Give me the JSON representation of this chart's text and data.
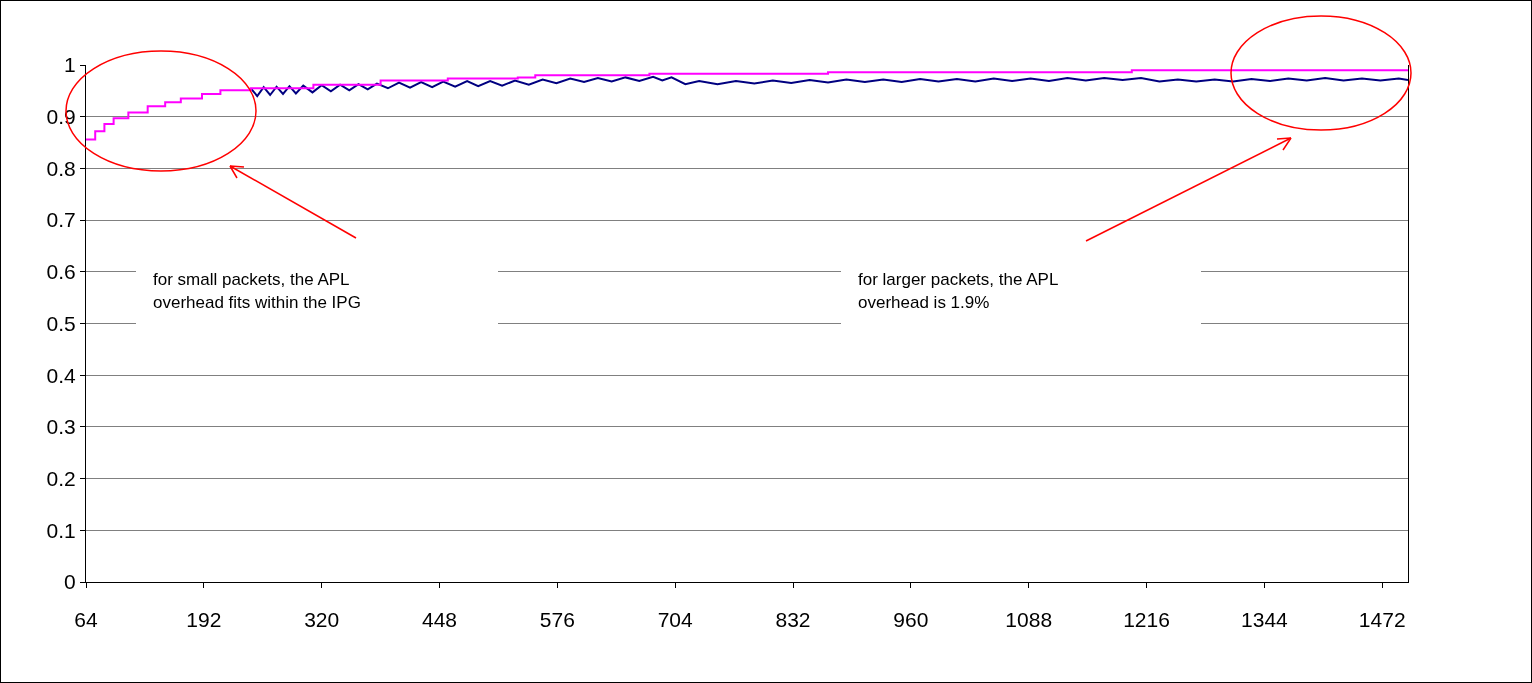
{
  "chart_data": {
    "type": "line",
    "xlim": [
      64,
      1500
    ],
    "xticks": [
      64,
      192,
      320,
      448,
      576,
      704,
      832,
      960,
      1088,
      1216,
      1344,
      1472
    ],
    "ylim": [
      0,
      1
    ],
    "yticks": [
      0,
      0.1,
      0.2,
      0.3,
      0.4,
      0.5,
      0.6,
      0.7,
      0.8,
      0.9,
      1
    ],
    "grid": "y",
    "marker": "none",
    "line_style": "solid",
    "annotations": [
      "for small packets, the APL\noverhead fits within the IPG",
      "for larger packets, the APL\noverhead is 1.9%"
    ],
    "series": [
      {
        "color": "#000080",
        "x": [
          243,
          250,
          257,
          264,
          271,
          278,
          285,
          292,
          300,
          310,
          320,
          330,
          340,
          350,
          360,
          370,
          380,
          392,
          404,
          416,
          428,
          440,
          452,
          465,
          478,
          490,
          503,
          516,
          530,
          545,
          560,
          575,
          590,
          605,
          620,
          635,
          650,
          665,
          680,
          690,
          700,
          715,
          730,
          750,
          770,
          790,
          810,
          830,
          850,
          870,
          890,
          910,
          930,
          950,
          970,
          990,
          1010,
          1030,
          1050,
          1070,
          1090,
          1110,
          1130,
          1150,
          1170,
          1190,
          1210,
          1230,
          1250,
          1270,
          1290,
          1310,
          1330,
          1350,
          1370,
          1390,
          1410,
          1430,
          1450,
          1470,
          1490,
          1500
        ],
        "values": [
          0.955,
          0.94,
          0.957,
          0.942,
          0.958,
          0.944,
          0.959,
          0.945,
          0.96,
          0.947,
          0.961,
          0.949,
          0.962,
          0.951,
          0.963,
          0.953,
          0.964,
          0.955,
          0.966,
          0.956,
          0.967,
          0.957,
          0.968,
          0.958,
          0.969,
          0.959,
          0.969,
          0.96,
          0.97,
          0.962,
          0.972,
          0.965,
          0.974,
          0.967,
          0.975,
          0.968,
          0.976,
          0.969,
          0.977,
          0.97,
          0.976,
          0.963,
          0.969,
          0.963,
          0.969,
          0.964,
          0.97,
          0.965,
          0.971,
          0.966,
          0.972,
          0.967,
          0.972,
          0.967,
          0.973,
          0.968,
          0.973,
          0.968,
          0.974,
          0.969,
          0.974,
          0.969,
          0.975,
          0.97,
          0.975,
          0.971,
          0.975,
          0.968,
          0.972,
          0.968,
          0.972,
          0.968,
          0.973,
          0.969,
          0.974,
          0.97,
          0.975,
          0.97,
          0.974,
          0.97,
          0.974,
          0.971
        ]
      },
      {
        "type": "step",
        "color": "#ff00ff",
        "x": [
          64,
          74,
          84,
          94,
          110,
          131,
          150,
          167,
          190,
          210,
          243,
          311,
          384,
          457,
          533,
          552,
          676,
          870,
          1200,
          1500
        ],
        "values": [
          0.856,
          0.872,
          0.886,
          0.897,
          0.908,
          0.92,
          0.928,
          0.935,
          0.944,
          0.951,
          0.955,
          0.962,
          0.97,
          0.974,
          0.976,
          0.98,
          0.983,
          0.986,
          0.99,
          0.99
        ]
      }
    ]
  }
}
